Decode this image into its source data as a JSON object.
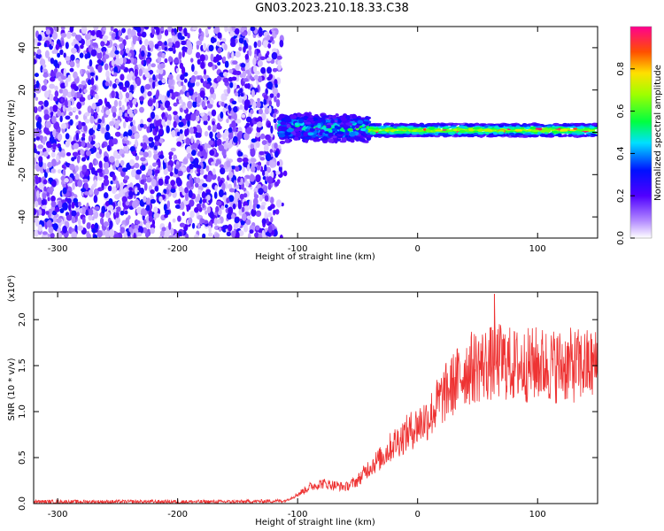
{
  "title": "GN03.2023.210.18.33.C38",
  "chart_data": [
    {
      "type": "heatmap",
      "xlabel": "Height of straight line (km)",
      "ylabel": "Frequency (Hz)",
      "xlim": [
        -320,
        150
      ],
      "ylim": [
        -50,
        50
      ],
      "x_ticks": [
        -300,
        -200,
        -100,
        0,
        100
      ],
      "y_ticks": [
        -40,
        -20,
        0,
        20,
        40
      ],
      "colorbar": {
        "label": "Normalized spectral amplitude",
        "range": [
          0.0,
          1.0
        ],
        "ticks": [
          0.0,
          0.2,
          0.4,
          0.6,
          0.8
        ],
        "colormap": [
          "#ffffff",
          "#7f00ff",
          "#0000ff",
          "#00ffff",
          "#00ff00",
          "#ffff00",
          "#ff8000",
          "#ff0000",
          "#ff00ff"
        ]
      },
      "regions": [
        {
          "x_range": [
            -320,
            -115
          ],
          "frequency_band": [
            -50,
            50
          ],
          "typical_amplitude": 0.1,
          "description": "broadband noise"
        },
        {
          "x_range": [
            -115,
            -40
          ],
          "frequency_center": 2,
          "frequency_halfwidth": 7,
          "typical_amplitude": 0.4
        },
        {
          "x_range": [
            -40,
            150
          ],
          "frequency_center": 1,
          "frequency_halfwidth": 3,
          "typical_amplitude": 0.75
        }
      ]
    },
    {
      "type": "line",
      "xlabel": "Height of straight line (km)",
      "ylabel": "SNR (10 * v/v)",
      "y_scale_label": "(x10⁴)",
      "xlim": [
        -320,
        150
      ],
      "ylim": [
        0,
        2.3
      ],
      "x_ticks": [
        -300,
        -200,
        -100,
        0,
        100
      ],
      "y_ticks": [
        0.0,
        0.5,
        1.0,
        1.5,
        2.0
      ],
      "color": "#ee3333",
      "series": [
        {
          "x": [
            -320,
            -250,
            -200,
            -150,
            -110,
            -100,
            -90,
            -80,
            -70,
            -60,
            -50,
            -40,
            -30,
            -20,
            -10,
            0,
            10,
            20,
            30,
            40,
            50,
            60,
            70,
            80,
            90,
            100,
            110,
            120,
            130,
            140,
            150
          ],
          "y": [
            0.02,
            0.02,
            0.02,
            0.02,
            0.03,
            0.1,
            0.18,
            0.22,
            0.2,
            0.18,
            0.25,
            0.4,
            0.5,
            0.65,
            0.75,
            0.85,
            0.95,
            1.15,
            1.3,
            1.45,
            1.5,
            1.52,
            1.55,
            1.5,
            1.5,
            1.52,
            1.5,
            1.5,
            1.5,
            1.5,
            1.5
          ],
          "peak": {
            "x": 64,
            "y": 2.28
          }
        }
      ]
    }
  ]
}
